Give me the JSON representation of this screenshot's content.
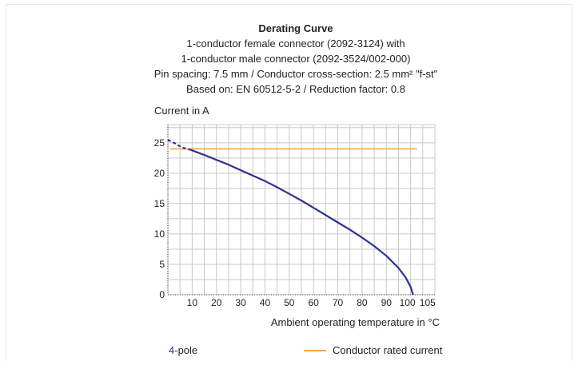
{
  "titles": [
    "Derating Curve",
    "1-conductor female connector (2092-3124) with",
    "1-conductor male connector  (2092-3524/002-000)",
    "Pin spacing: 7.5 mm / Conductor cross-section: 2.5 mm² \"f-st\"",
    "Based on: EN 60512-5-2 / Reduction factor: 0.8"
  ],
  "legend": {
    "pole_number": "4",
    "pole_suffix": "-pole",
    "rated_label": "Conductor rated current"
  },
  "colors": {
    "curve": "#2e3192",
    "rated": "#f4a93b",
    "grid": "#c8c8c8",
    "axis": "#333333"
  },
  "chart_data": {
    "type": "line",
    "xlabel": "Ambient operating temperature in °C",
    "ylabel": "Current in A",
    "xlim": [
      0,
      110
    ],
    "ylim": [
      0,
      28
    ],
    "x_ticks": [
      10,
      20,
      30,
      40,
      50,
      60,
      70,
      80,
      90,
      100,
      105
    ],
    "y_ticks": [
      0,
      5,
      10,
      15,
      20,
      25
    ],
    "grid": true,
    "series": [
      {
        "name": "4-pole",
        "x": [
          0,
          3,
          6,
          9,
          15,
          20,
          25,
          30,
          35,
          40,
          45,
          50,
          55,
          60,
          65,
          70,
          75,
          80,
          85,
          90,
          95,
          98,
          100,
          101
        ],
        "y": [
          25.5,
          24.9,
          24.2,
          23.9,
          23.0,
          22.2,
          21.4,
          20.5,
          19.6,
          18.7,
          17.7,
          16.6,
          15.5,
          14.3,
          13.1,
          11.9,
          10.7,
          9.4,
          8.0,
          6.4,
          4.4,
          2.8,
          1.3,
          0
        ],
        "dashed_until_x": 9
      },
      {
        "name": "Conductor rated current",
        "x": [
          0,
          100
        ],
        "y": [
          24,
          24
        ]
      }
    ]
  }
}
